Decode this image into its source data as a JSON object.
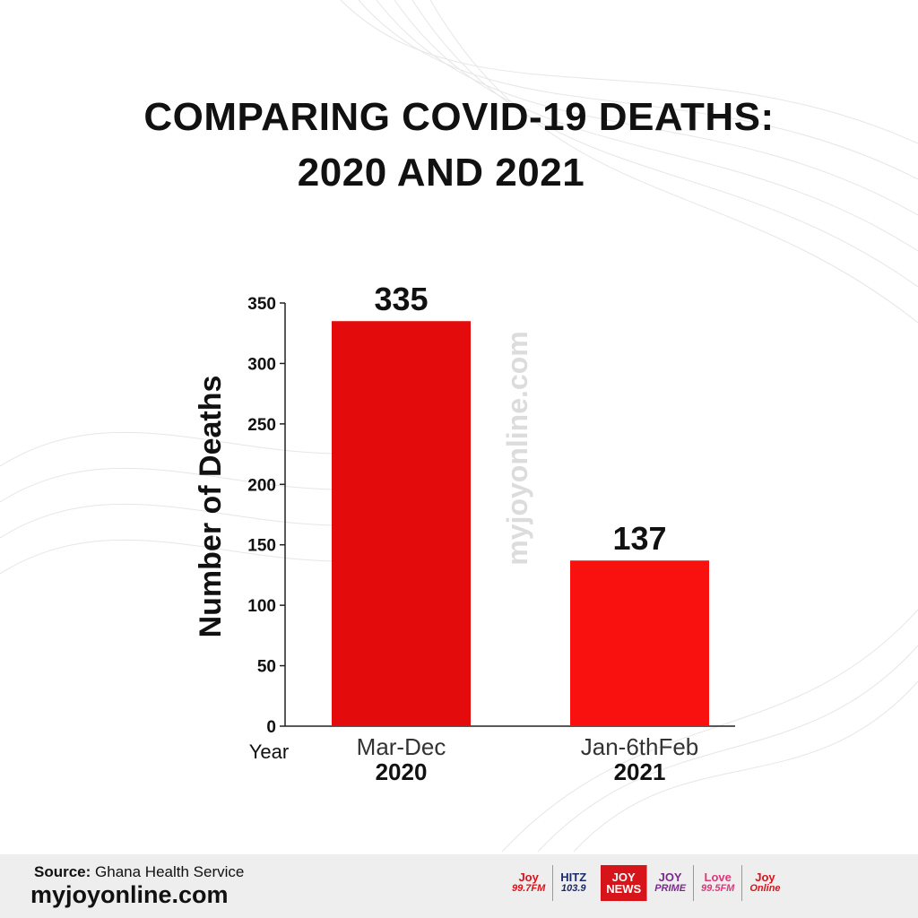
{
  "title_lines": [
    "COMPARING COVID-19 DEATHS:",
    "2020 AND 2021"
  ],
  "watermark": "myjoyonline.com",
  "chart_data": {
    "type": "bar",
    "title": "COMPARING COVID-19 DEATHS: 2020 AND 2021",
    "ylabel": "Number of Deaths",
    "xlabel": "Year",
    "ylim": [
      0,
      350
    ],
    "yticks": [
      0,
      50,
      100,
      150,
      200,
      250,
      300,
      350
    ],
    "categories": [
      {
        "label": "Mar-Dec",
        "year": "2020"
      },
      {
        "label": "Jan-6thFeb",
        "year": "2021"
      }
    ],
    "values": [
      335,
      137
    ],
    "data_labels": [
      "335",
      "137"
    ],
    "bar_colors": [
      "#e30b0b",
      "#f8110e"
    ],
    "grid": false,
    "legend": "none"
  },
  "footer": {
    "source_label": "Source:",
    "source_value": "Ghana Health Service",
    "site": "myjoyonline.com",
    "logos": [
      {
        "name": "joy-fm-logo",
        "top": "Joy",
        "bottom": "99.7FM"
      },
      {
        "name": "hitz-fm-logo",
        "top": "HITZ",
        "bottom": "103.9"
      },
      {
        "name": "joy-news-logo",
        "top": "JOY",
        "bottom": "NEWS"
      },
      {
        "name": "joy-prime-logo",
        "top": "JOY",
        "bottom": "PRIME"
      },
      {
        "name": "adom-love-logo",
        "top": "Love",
        "bottom": "99.5FM"
      },
      {
        "name": "joy-online-logo",
        "top": "Joy",
        "bottom": "Online"
      }
    ]
  }
}
